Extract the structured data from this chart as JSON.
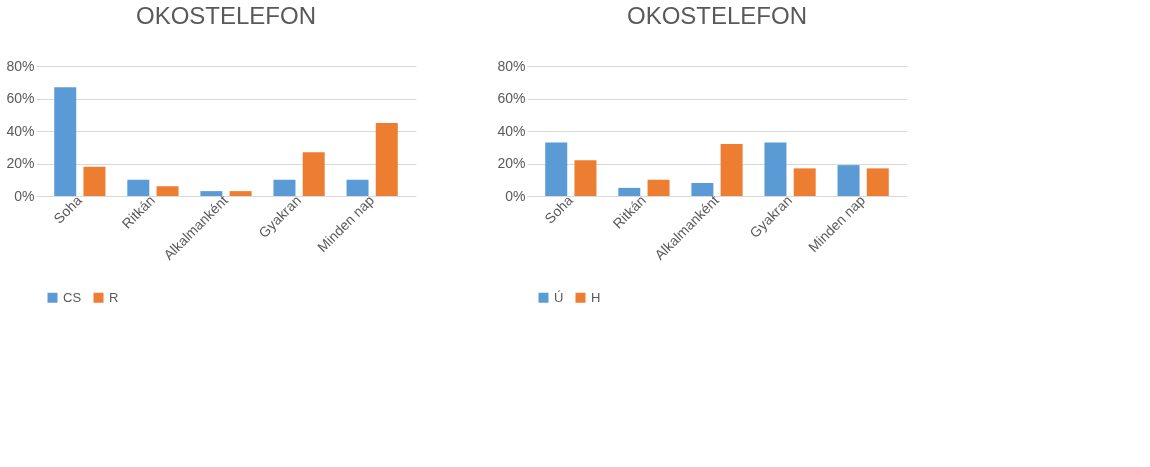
{
  "chart_data": [
    {
      "type": "bar",
      "title": "OKOSTELEFON",
      "categories": [
        "Soha",
        "Ritkán",
        "Alkalmanként",
        "Gyakran",
        "Minden nap"
      ],
      "series": [
        {
          "name": "CS",
          "color": "#5b9bd5",
          "values": [
            67,
            10,
            3,
            10,
            10
          ]
        },
        {
          "name": "R",
          "color": "#ed7d31",
          "values": [
            18,
            6,
            3,
            27,
            45
          ]
        }
      ],
      "ylim": [
        0,
        80
      ],
      "yticks": [
        {
          "value": 0,
          "label": "0%"
        },
        {
          "value": 20,
          "label": "20%"
        },
        {
          "value": 40,
          "label": "40%"
        },
        {
          "value": 60,
          "label": "60%"
        },
        {
          "value": 80,
          "label": "80%"
        }
      ],
      "grid": "y",
      "legend": "bottom"
    },
    {
      "type": "bar",
      "title": "OKOSTELEFON",
      "categories": [
        "Soha",
        "Ritkán",
        "Alkalmanként",
        "Gyakran",
        "Minden nap"
      ],
      "series": [
        {
          "name": "Ú",
          "color": "#5b9bd5",
          "values": [
            33,
            5,
            8,
            33,
            19
          ]
        },
        {
          "name": "H",
          "color": "#ed7d31",
          "values": [
            22,
            10,
            32,
            17,
            17
          ]
        }
      ],
      "ylim": [
        0,
        80
      ],
      "yticks": [
        {
          "value": 0,
          "label": "0%"
        },
        {
          "value": 20,
          "label": "20%"
        },
        {
          "value": 40,
          "label": "40%"
        },
        {
          "value": 60,
          "label": "60%"
        },
        {
          "value": 80,
          "label": "80%"
        }
      ],
      "grid": "y",
      "legend": "bottom"
    }
  ]
}
